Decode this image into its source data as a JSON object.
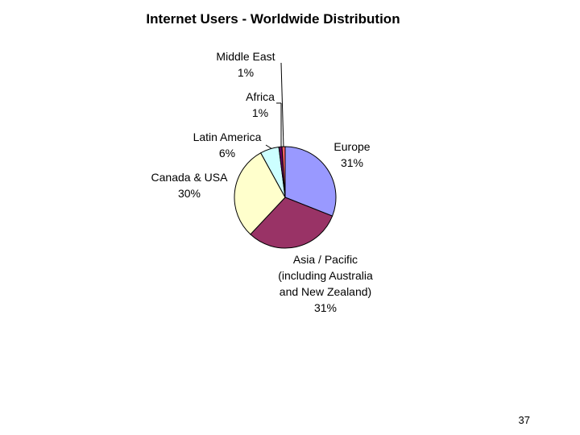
{
  "chart_data": {
    "type": "pie",
    "title": "Internet Users - Worldwide Distribution",
    "categories": [
      "Europe",
      "Asia / Pacific (including Australia and New Zealand)",
      "Canada & USA",
      "Latin America",
      "Africa",
      "Middle East"
    ],
    "values": [
      31,
      31,
      30,
      6,
      1,
      1
    ],
    "value_labels": [
      "31%",
      "31%",
      "30%",
      "6%",
      "1%",
      "1%"
    ],
    "colors": [
      "#9999ff",
      "#993366",
      "#ffffcc",
      "#ccffff",
      "#660066",
      "#ff6666"
    ]
  },
  "page_number": 37
}
